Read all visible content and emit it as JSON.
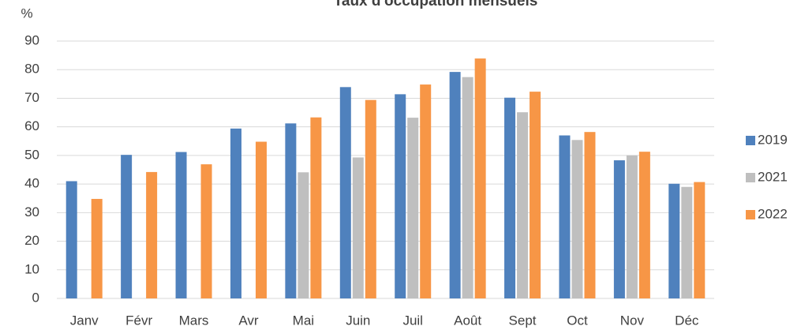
{
  "chart_data": {
    "type": "bar",
    "title": "Taux d'occupation mensuels",
    "y_label": "%",
    "categories": [
      "Janv",
      "Févr",
      "Mars",
      "Avr",
      "Mai",
      "Juin",
      "Juil",
      "Août",
      "Sept",
      "Oct",
      "Nov",
      "Déc"
    ],
    "series": [
      {
        "name": "2019",
        "color": "#4f81bd",
        "values": [
          41,
          50.2,
          51.2,
          59.4,
          61.2,
          73.9,
          71.4,
          79.2,
          70.2,
          57,
          48.3,
          40.1
        ]
      },
      {
        "name": "2021",
        "color": "#bfbfbf",
        "values": [
          null,
          null,
          null,
          null,
          44.1,
          49.3,
          63.2,
          77.4,
          65.1,
          55.4,
          50,
          39
        ]
      },
      {
        "name": "2022",
        "color": "#f79646",
        "values": [
          34.8,
          44.2,
          46.9,
          54.8,
          63.3,
          69.4,
          74.8,
          83.9,
          72.3,
          58.2,
          51.3,
          40.7
        ]
      }
    ],
    "ylim": [
      0,
      90
    ],
    "yticks": [
      0,
      10,
      20,
      30,
      40,
      50,
      60,
      70,
      80,
      90
    ],
    "grid": true,
    "legend": "right"
  }
}
